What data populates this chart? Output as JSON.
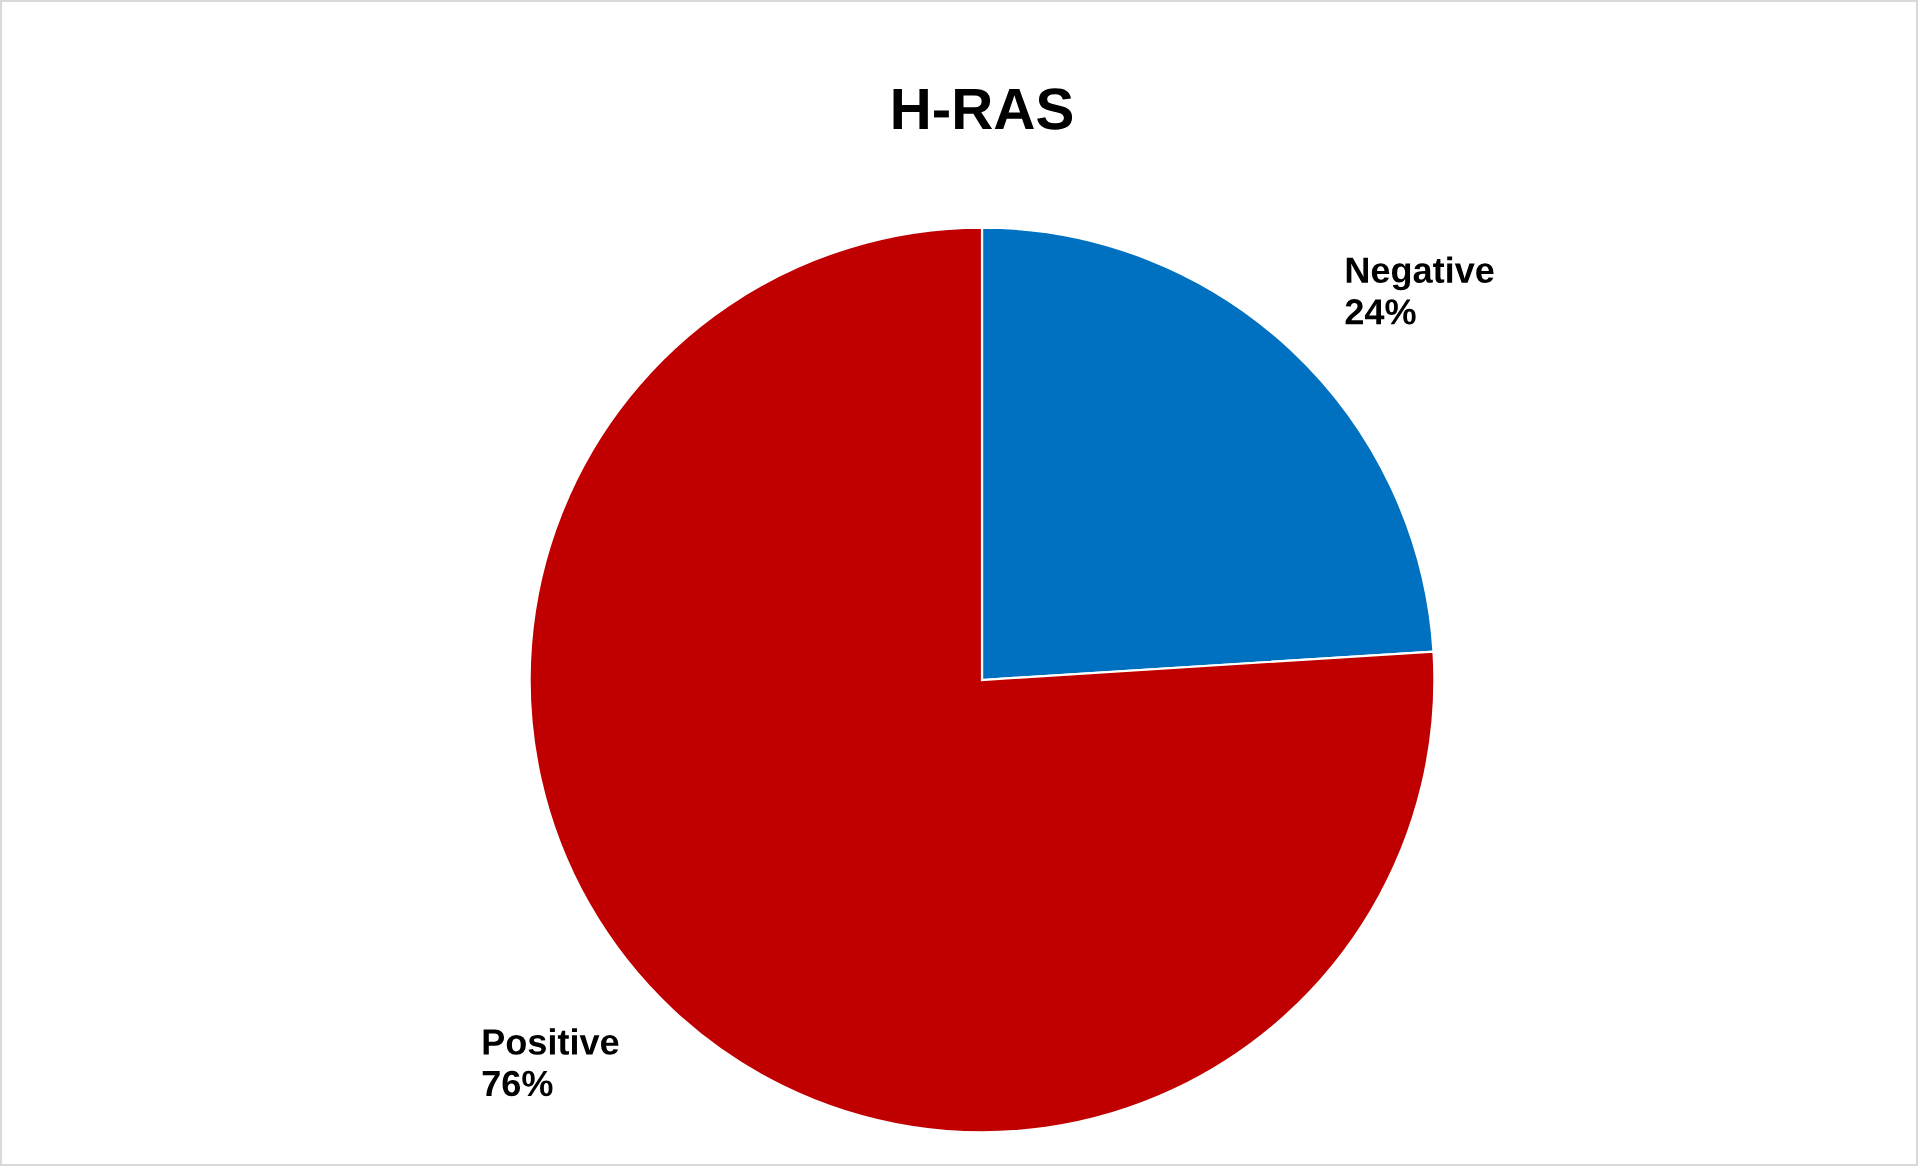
{
  "chart_data": {
    "type": "pie",
    "title": "H-RAS",
    "categories": [
      "Negative",
      "Positive"
    ],
    "values": [
      24,
      76
    ],
    "value_labels": [
      "24%",
      "76%"
    ],
    "colors": [
      "#0070c0",
      "#c00000"
    ],
    "legend": false
  }
}
